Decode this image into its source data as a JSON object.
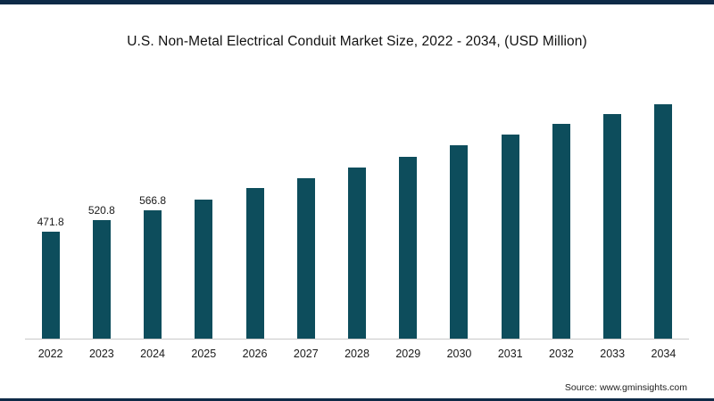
{
  "chart_data": {
    "type": "bar",
    "title": "U.S. Non-Metal Electrical Conduit Market Size, 2022 - 2034, (USD Million)",
    "xlabel": "",
    "ylabel": "",
    "categories": [
      "2022",
      "2023",
      "2024",
      "2025",
      "2026",
      "2027",
      "2028",
      "2029",
      "2030",
      "2031",
      "2032",
      "2033",
      "2034"
    ],
    "values": [
      471.8,
      520.8,
      566.8,
      612,
      664,
      708,
      754,
      800,
      852,
      900,
      945,
      990,
      1032
    ],
    "data_labels": [
      "471.8",
      "520.8",
      "566.8",
      "",
      "",
      "",
      "",
      "",
      "",
      "",
      "",
      "",
      ""
    ],
    "ylim": [
      0,
      1060
    ],
    "grid": false,
    "legend": "none",
    "colors": {
      "bar": "#0d4d5c",
      "accent_border": "#0e2a47",
      "axis_line": "#c9c9c9"
    },
    "source": "Source: www.gminsights.com"
  }
}
